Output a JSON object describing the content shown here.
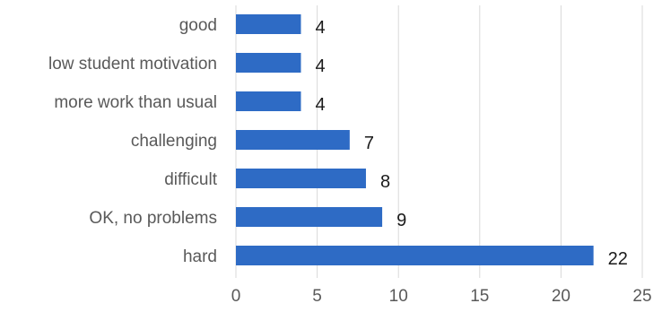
{
  "chart_data": {
    "type": "bar",
    "orientation": "horizontal",
    "categories": [
      "good",
      "low student motivation",
      "more work than usual",
      "challenging",
      "difficult",
      "OK, no problems",
      "hard"
    ],
    "values": [
      4,
      4,
      4,
      7,
      8,
      9,
      22
    ],
    "data_labels": [
      "4",
      "4",
      "4",
      "7",
      "8",
      "9",
      "22"
    ],
    "title": "",
    "xlabel": "",
    "ylabel": "",
    "xlim": [
      0,
      25
    ],
    "x_ticks": [
      0,
      5,
      10,
      15,
      20,
      25
    ],
    "x_tick_labels": [
      "0",
      "5",
      "10",
      "15",
      "20",
      "25"
    ],
    "grid": "vertical",
    "legend": "none",
    "bar_color": "#2e6bc5",
    "grid_color": "#d9d9d9"
  }
}
